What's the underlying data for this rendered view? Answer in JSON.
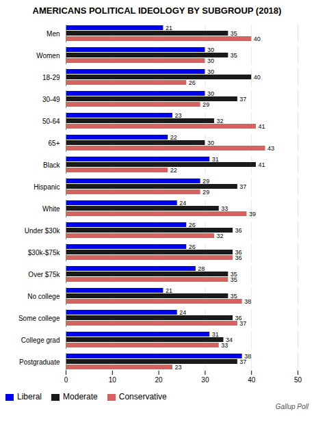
{
  "chart_data": {
    "type": "bar",
    "orientation": "horizontal",
    "title": "AMERICANS POLITICAL IDEOLOGY BY SUBGROUP (2018)",
    "annotations": [
      "Gallup Poll"
    ],
    "categories": [
      "Men",
      "Women",
      "18-29",
      "30-49",
      "50-64",
      "65+",
      "Black",
      "Hispanic",
      "White",
      "Under $30k",
      "$30k-$75k",
      "Over $75k",
      "No college",
      "Some college",
      "College grad",
      "Postgraduate"
    ],
    "series": [
      {
        "name": "Liberal",
        "color": "#0000ee",
        "values": [
          21,
          30,
          30,
          30,
          23,
          22,
          31,
          29,
          24,
          26,
          26,
          28,
          21,
          24,
          31,
          38
        ]
      },
      {
        "name": "Moderate",
        "color": "#1a1a1a",
        "values": [
          35,
          35,
          40,
          37,
          32,
          30,
          41,
          37,
          33,
          36,
          36,
          35,
          35,
          36,
          34,
          37
        ]
      },
      {
        "name": "Conservative",
        "color": "#d96060",
        "values": [
          40,
          30,
          26,
          29,
          41,
          43,
          22,
          29,
          39,
          32,
          36,
          35,
          38,
          37,
          33,
          23
        ]
      }
    ],
    "xlim": [
      0,
      50
    ],
    "xticks": [
      0,
      10,
      20,
      30,
      40,
      50
    ],
    "grid": true,
    "data_labels": true,
    "legend": "lower left"
  }
}
